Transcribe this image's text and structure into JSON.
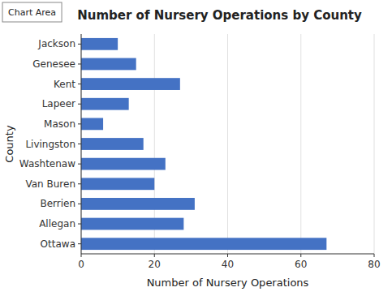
{
  "chart_data": {
    "type": "bar",
    "orientation": "horizontal",
    "title": "Number of Nursery Operations by County",
    "xlabel": "Number of Nursery Operations",
    "ylabel": "County",
    "categories": [
      "Ottawa",
      "Allegan",
      "Berrien",
      "Van Buren",
      "Washtenaw",
      "Livingston",
      "Mason",
      "Lapeer",
      "Kent",
      "Genesee",
      "Jackson"
    ],
    "values": [
      67,
      28,
      31,
      20,
      23,
      17,
      6,
      13,
      27,
      15,
      10
    ],
    "color": "#4472C4",
    "xlim": [
      0,
      80
    ],
    "xticks": [
      0,
      20,
      40,
      60,
      80
    ],
    "grid": true,
    "annotations": [
      "Chart Area"
    ]
  }
}
